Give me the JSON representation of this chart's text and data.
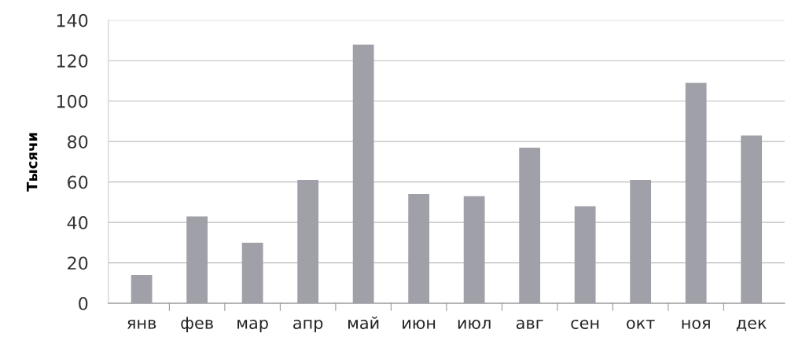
{
  "chart_data": {
    "type": "bar",
    "ylabel": "Тысячи",
    "categories": [
      "янв",
      "фев",
      "мар",
      "апр",
      "май",
      "июн",
      "июл",
      "авг",
      "сен",
      "окт",
      "ноя",
      "дек"
    ],
    "values": [
      14,
      43,
      30,
      61,
      128,
      54,
      53,
      77,
      48,
      61,
      109,
      83
    ],
    "color": "#a0a0a8",
    "ylim": [
      0,
      140
    ],
    "yticks": [
      0,
      20,
      40,
      60,
      80,
      100,
      120,
      140
    ],
    "grid": "y",
    "legend": false
  }
}
